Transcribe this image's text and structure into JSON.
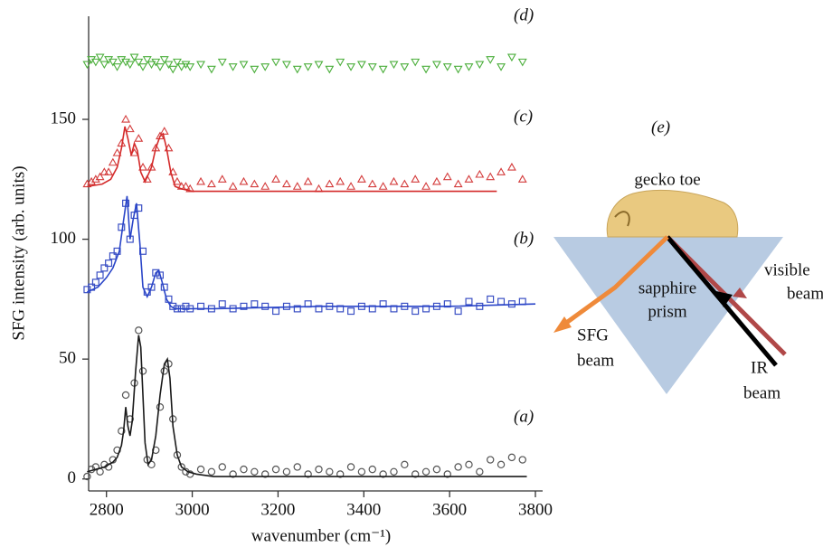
{
  "chart_data": {
    "type": "scatter",
    "x_label": "wavenumber (cm⁻¹)",
    "y_label": "SFG intensity (arb. units)",
    "xlim": [
      2750,
      3800
    ],
    "ylim": [
      -5,
      193
    ],
    "xticks": [
      2800,
      3000,
      3200,
      3400,
      3600,
      3800
    ],
    "yticks": [
      0,
      50,
      100,
      150
    ],
    "x": [
      2755,
      2765,
      2775,
      2785,
      2795,
      2805,
      2815,
      2825,
      2835,
      2845,
      2855,
      2865,
      2875,
      2885,
      2895,
      2905,
      2915,
      2925,
      2935,
      2945,
      2955,
      2965,
      2975,
      2985,
      2995,
      3020,
      3045,
      3070,
      3095,
      3120,
      3145,
      3170,
      3195,
      3220,
      3245,
      3270,
      3295,
      3320,
      3345,
      3370,
      3395,
      3420,
      3445,
      3470,
      3495,
      3520,
      3545,
      3570,
      3595,
      3620,
      3645,
      3670,
      3695,
      3720,
      3745,
      3770
    ],
    "series": [
      {
        "name": "(a)",
        "color": "#555555",
        "marker": "circle",
        "values": [
          1,
          4,
          5,
          3,
          6,
          5,
          8,
          12,
          20,
          35,
          25,
          40,
          62,
          45,
          8,
          6,
          12,
          30,
          45,
          48,
          25,
          10,
          5,
          3,
          2,
          4,
          3,
          5,
          2,
          4,
          3,
          2,
          4,
          3,
          5,
          2,
          4,
          3,
          2,
          5,
          3,
          4,
          2,
          3,
          6,
          2,
          3,
          4,
          2,
          5,
          6,
          3,
          8,
          6,
          9,
          8
        ]
      },
      {
        "color": "#1a1a1a",
        "mode": "line",
        "x": [
          2755,
          2775,
          2795,
          2815,
          2825,
          2835,
          2840,
          2845,
          2850,
          2855,
          2860,
          2868,
          2875,
          2880,
          2885,
          2890,
          2897,
          2905,
          2915,
          2925,
          2935,
          2942,
          2948,
          2955,
          2965,
          2975,
          2990,
          3010,
          3050,
          3200,
          3500,
          3780
        ],
        "values": [
          3,
          4,
          5,
          7,
          9,
          14,
          20,
          30,
          22,
          18,
          24,
          45,
          60,
          55,
          35,
          15,
          6,
          8,
          18,
          35,
          48,
          50,
          42,
          22,
          10,
          5,
          3,
          2,
          1,
          1,
          1,
          1
        ]
      },
      {
        "name": "(b)",
        "color": "#3a4fc4",
        "marker": "square",
        "values": [
          79,
          80,
          82,
          85,
          88,
          90,
          93,
          95,
          105,
          115,
          100,
          110,
          113,
          95,
          78,
          80,
          86,
          85,
          80,
          75,
          72,
          71,
          71,
          72,
          71,
          72,
          71,
          73,
          71,
          72,
          73,
          72,
          70,
          72,
          71,
          73,
          71,
          72,
          71,
          70,
          72,
          71,
          73,
          71,
          72,
          70,
          71,
          72,
          73,
          70,
          74,
          72,
          75,
          74,
          73,
          74
        ]
      },
      {
        "color": "#2a45c8",
        "mode": "line",
        "x": [
          2755,
          2780,
          2800,
          2815,
          2830,
          2840,
          2848,
          2855,
          2862,
          2870,
          2878,
          2885,
          2895,
          2905,
          2915,
          2922,
          2930,
          2940,
          2950,
          2960,
          2980,
          3050,
          3300,
          3600,
          3800
        ],
        "values": [
          78,
          80,
          84,
          88,
          95,
          108,
          118,
          100,
          108,
          115,
          98,
          80,
          76,
          80,
          86,
          87,
          82,
          75,
          72,
          71,
          71,
          71,
          72,
          72,
          73
        ]
      },
      {
        "name": "(c)",
        "color": "#d43c3c",
        "marker": "triangle-up",
        "values": [
          123,
          124,
          125,
          126,
          128,
          128,
          132,
          136,
          140,
          150,
          146,
          136,
          142,
          130,
          125,
          130,
          138,
          143,
          145,
          138,
          128,
          124,
          122,
          122,
          121,
          124,
          123,
          125,
          122,
          124,
          123,
          122,
          125,
          123,
          122,
          124,
          121,
          123,
          124,
          122,
          125,
          123,
          122,
          124,
          123,
          125,
          122,
          124,
          126,
          123,
          125,
          127,
          126,
          128,
          130,
          125
        ]
      },
      {
        "color": "#d42a2a",
        "mode": "line",
        "x": [
          2755,
          2790,
          2810,
          2825,
          2835,
          2843,
          2850,
          2858,
          2865,
          2872,
          2880,
          2890,
          2905,
          2915,
          2925,
          2932,
          2940,
          2950,
          2960,
          2975,
          3000,
          3300,
          3710
        ],
        "values": [
          122,
          123,
          125,
          130,
          138,
          147,
          142,
          135,
          140,
          137,
          128,
          124,
          130,
          138,
          143,
          144,
          138,
          128,
          122,
          121,
          120,
          120,
          120
        ]
      },
      {
        "name": "(d)",
        "color": "#4caf3c",
        "marker": "triangle-down",
        "values": [
          173,
          175,
          174,
          176,
          173,
          175,
          174,
          172,
          175,
          174,
          173,
          176,
          174,
          172,
          175,
          173,
          174,
          172,
          175,
          173,
          171,
          174,
          172,
          173,
          172,
          173,
          171,
          174,
          172,
          173,
          171,
          172,
          174,
          173,
          171,
          172,
          173,
          171,
          174,
          172,
          173,
          172,
          171,
          173,
          172,
          174,
          171,
          173,
          172,
          171,
          172,
          173,
          175,
          172,
          176,
          174
        ]
      }
    ]
  },
  "diagram": {
    "label": "(e)",
    "toe": "gecko toe",
    "prism": [
      "sapphire",
      "prism"
    ],
    "visible": [
      "visible",
      "beam"
    ],
    "sfg": [
      "SFG",
      "beam"
    ],
    "ir": [
      "IR",
      "beam"
    ]
  }
}
